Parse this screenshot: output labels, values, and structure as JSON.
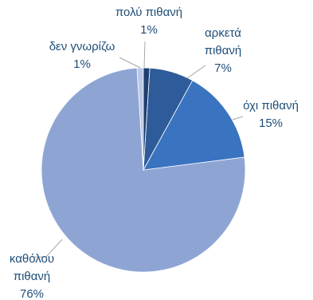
{
  "chart_data": {
    "type": "pie",
    "categories": [
      "πολύ πιθανή",
      "αρκετά πιθανή",
      "όχι πιθανή",
      "καθόλου πιθανή",
      "δεν γνωρίζω"
    ],
    "values": [
      1,
      7,
      15,
      76,
      1
    ],
    "value_labels": [
      "1%",
      "7%",
      "15%",
      "76%",
      "1%"
    ],
    "colors": [
      "#1f3f6e",
      "#2e5c9a",
      "#3a73c0",
      "#8ea5d4",
      "#b8c8e6"
    ]
  }
}
